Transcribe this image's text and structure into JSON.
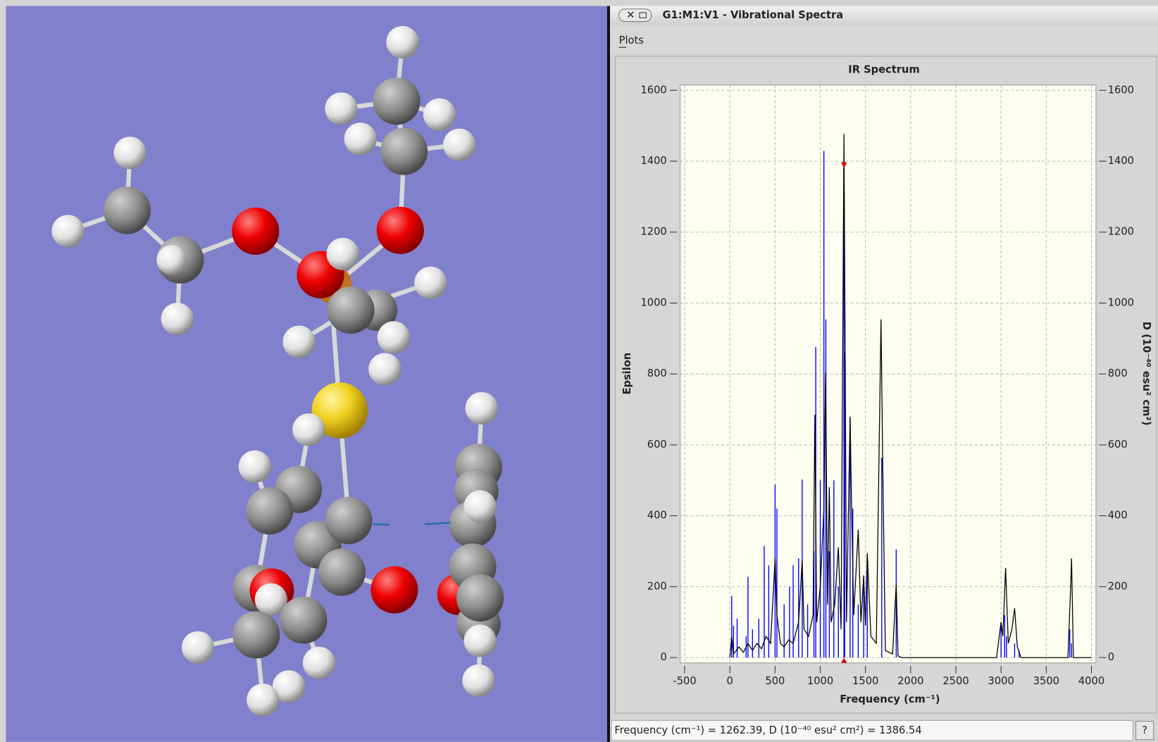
{
  "window": {
    "title": "G1:M1:V1 - Vibrational Spectra",
    "menu": "Plots",
    "status": {
      "freq_label": "Frequency (cm⁻¹) = ",
      "freq": 1262.39,
      "d_label": ", D (10⁻⁴⁰ esu² cm²) = ",
      "d": 1386.54
    }
  },
  "chart_data": {
    "type": "line",
    "title": "IR Spectrum",
    "x_label": "Frequency (cm⁻¹)",
    "y_label": "Epsilon",
    "y2_label": "D (10⁻⁴⁰ esu² cm²)",
    "xlim": [
      -550,
      4050
    ],
    "xticks": [
      -500,
      0,
      500,
      1000,
      1500,
      2000,
      2500,
      3000,
      3500,
      4000
    ],
    "ylim": [
      -15,
      1615
    ],
    "yticks": [
      0,
      200,
      400,
      600,
      800,
      1000,
      1200,
      1400,
      1600
    ],
    "y2lim": [
      -15,
      1615
    ],
    "y2ticks": [
      0,
      200,
      400,
      600,
      800,
      1000,
      1200,
      1400,
      1600
    ],
    "grid": true,
    "series": [
      {
        "color": "#000000",
        "x": [
          0,
          20,
          40,
          100,
          150,
          200,
          250,
          300,
          350,
          400,
          450,
          500,
          520,
          560,
          600,
          650,
          700,
          760,
          800,
          820,
          870,
          920,
          940,
          960,
          1000,
          1040,
          1059,
          1080,
          1100,
          1120,
          1160,
          1200,
          1230,
          1262,
          1275,
          1290,
          1330,
          1345,
          1370,
          1420,
          1450,
          1480,
          1500,
          1520,
          1560,
          1620,
          1672,
          1690,
          1720,
          1800,
          1840,
          1860,
          1900,
          2950,
          3000,
          3020,
          3050,
          3080,
          3120,
          3150,
          3180,
          3220,
          3740,
          3770,
          3780,
          3800,
          4000
        ],
        "values": [
          0,
          60,
          10,
          30,
          15,
          40,
          20,
          40,
          25,
          60,
          40,
          280,
          120,
          40,
          30,
          50,
          40,
          100,
          274,
          80,
          60,
          120,
          685,
          100,
          200,
          420,
          803,
          150,
          481,
          100,
          150,
          311,
          80,
          1477,
          870,
          100,
          678,
          444,
          120,
          361,
          100,
          232,
          90,
          295,
          60,
          40,
          954,
          560,
          20,
          10,
          207,
          5,
          0,
          0,
          100,
          60,
          253,
          40,
          80,
          139,
          30,
          0,
          0,
          200,
          280,
          0,
          0
        ]
      },
      {
        "color": "#0000ff",
        "axis": "y2",
        "style": "sticks",
        "x": [
          20,
          40,
          80,
          180,
          200,
          250,
          320,
          380,
          430,
          500,
          520,
          600,
          660,
          700,
          760,
          800,
          860,
          930,
          950,
          1000,
          1040,
          1062,
          1100,
          1150,
          1200,
          1262,
          1270,
          1330,
          1360,
          1420,
          1480,
          1520,
          1680,
          1840,
          3000,
          3040,
          3060,
          3150,
          3200,
          3760,
          3780
        ],
        "values": [
          174,
          90,
          110,
          60,
          228,
          80,
          110,
          315,
          260,
          488,
          420,
          150,
          200,
          260,
          280,
          502,
          150,
          300,
          876,
          500,
          1429,
          954,
          300,
          500,
          200,
          1386.54,
          860,
          680,
          420,
          150,
          200,
          250,
          564,
          305,
          100,
          120,
          60,
          40,
          20,
          80,
          40
        ]
      }
    ]
  }
}
